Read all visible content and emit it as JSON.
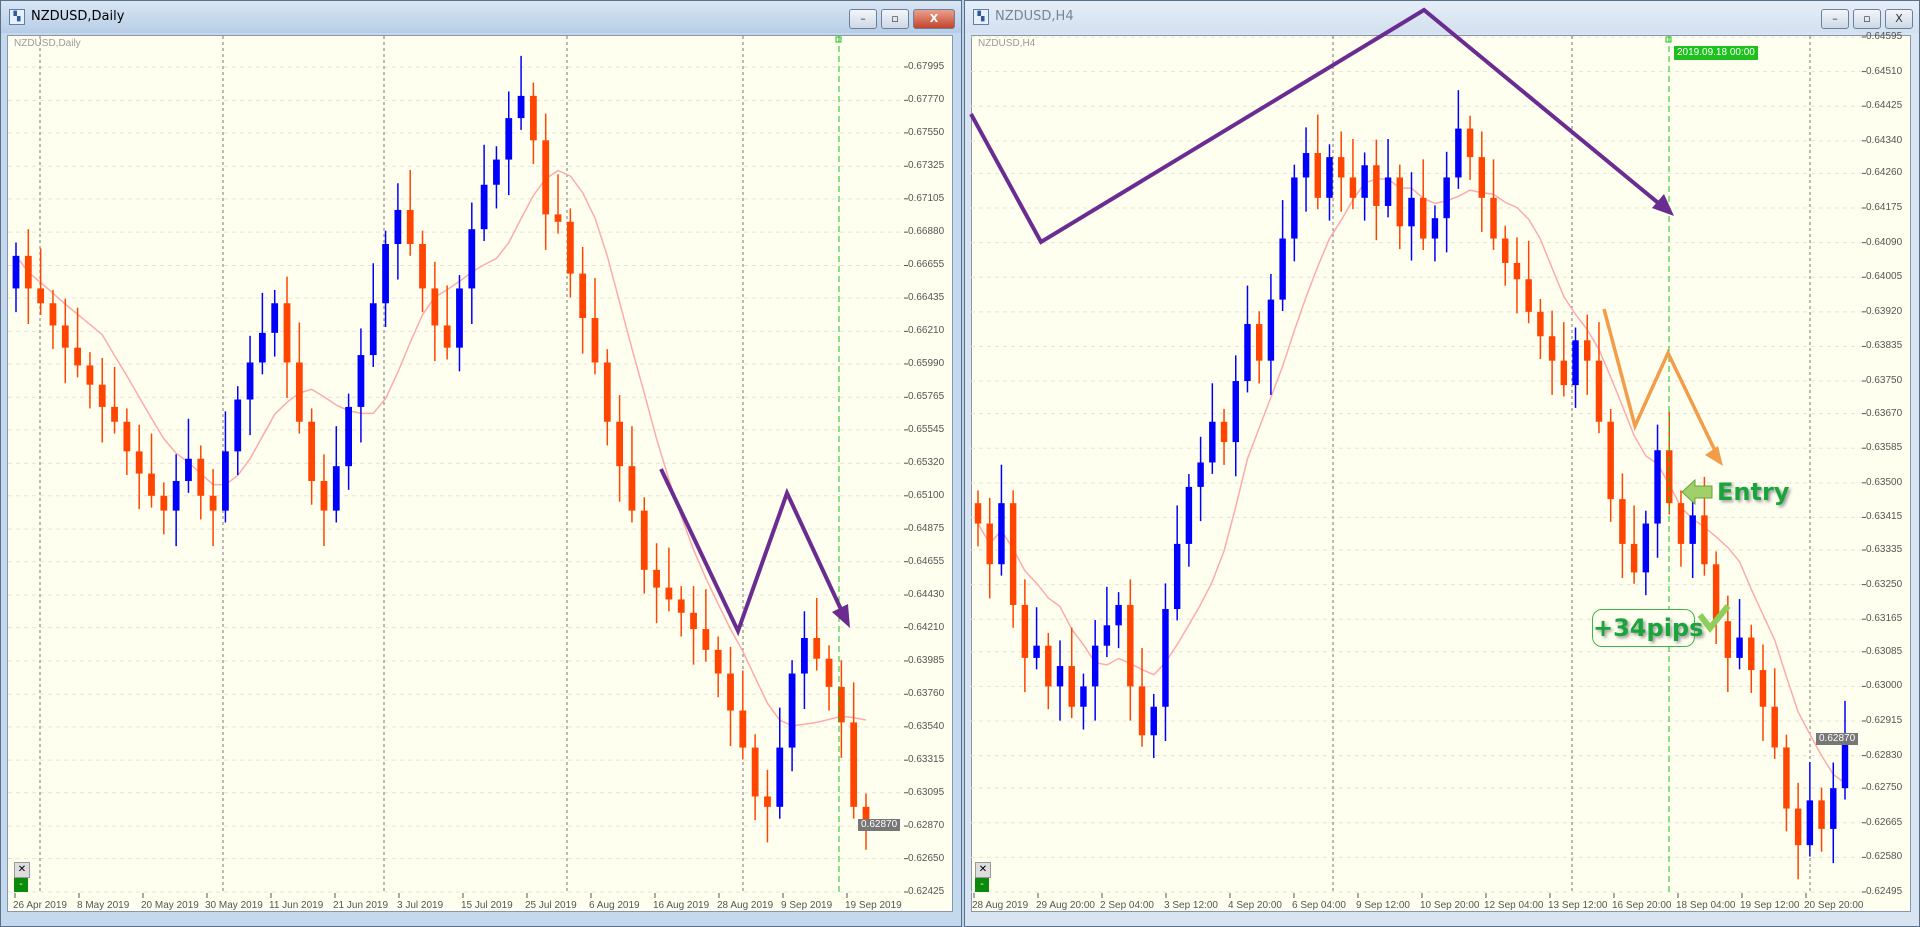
{
  "colors": {
    "bull": "#0000ff",
    "bear": "#ff4500",
    "ma": "#ffaaaa",
    "background": "#fffff0",
    "drawing_purple": "#6a2c91",
    "drawing_orange": "#f39c4a",
    "annotation_green": "#1aa53a"
  },
  "left_window": {
    "title": "NZDUSD,Daily",
    "symbol_label": "NZDUSD,Daily",
    "buttons": {
      "minimize": "–",
      "restore": "▫",
      "close": "X"
    },
    "current_price": "0.62870",
    "controls": {
      "close": "✕",
      "minimize": "-"
    }
  },
  "right_window": {
    "title": "NZDUSD,H4",
    "symbol_label": "NZDUSD,H4",
    "buttons": {
      "minimize": "–",
      "restore": "▫",
      "close": "X"
    },
    "current_price": "0.62870",
    "crosshair_date": "2019.09.18 00:00",
    "controls": {
      "close": "✕",
      "minimize": "-"
    },
    "annotations": {
      "entry": "Entry",
      "profit": "+34pips"
    }
  },
  "chart_data": [
    {
      "type": "candlestick",
      "title": "NZDUSD,Daily",
      "ylim": [
        0.62425,
        0.681
      ],
      "y_ticks": [
        "0.67995",
        "0.67770",
        "0.67550",
        "0.67325",
        "0.67105",
        "0.66880",
        "0.66655",
        "0.66435",
        "0.66210",
        "0.65990",
        "0.65765",
        "0.65545",
        "0.65320",
        "0.65100",
        "0.64875",
        "0.64655",
        "0.64430",
        "0.64210",
        "0.63985",
        "0.63760",
        "0.63540",
        "0.63315",
        "0.63095",
        "0.62870",
        "0.62650",
        "0.62425"
      ],
      "x_ticks": [
        "26 Apr 2019",
        "8 May 2019",
        "20 May 2019",
        "30 May 2019",
        "11 Jun 2019",
        "21 Jun 2019",
        "3 Jul 2019",
        "15 Jul 2019",
        "25 Jul 2019",
        "6 Aug 2019",
        "16 Aug 2019",
        "28 Aug 2019",
        "9 Sep 2019",
        "19 Sep 2019"
      ],
      "first_open": 0.665,
      "close": [
        0.6672,
        0.665,
        0.664,
        0.6625,
        0.661,
        0.6598,
        0.6585,
        0.657,
        0.656,
        0.654,
        0.6525,
        0.651,
        0.65,
        0.652,
        0.6535,
        0.651,
        0.65,
        0.654,
        0.6575,
        0.66,
        0.662,
        0.664,
        0.66,
        0.656,
        0.652,
        0.65,
        0.653,
        0.657,
        0.6605,
        0.664,
        0.668,
        0.6703,
        0.668,
        0.665,
        0.6625,
        0.661,
        0.665,
        0.669,
        0.672,
        0.6737,
        0.6765,
        0.678,
        0.675,
        0.67,
        0.6695,
        0.666,
        0.663,
        0.66,
        0.656,
        0.653,
        0.65,
        0.646,
        0.6448,
        0.644,
        0.6431,
        0.642,
        0.6406,
        0.639,
        0.6365,
        0.634,
        0.6307,
        0.63,
        0.634,
        0.639,
        0.6414,
        0.64,
        0.6381,
        0.6357,
        0.63,
        0.6287
      ],
      "grid": true
    },
    {
      "type": "candlestick",
      "title": "NZDUSD,H4",
      "ylim": [
        0.62495,
        0.64595
      ],
      "y_ticks": [
        "0.64595",
        "0.64510",
        "0.64425",
        "0.64340",
        "0.64260",
        "0.64175",
        "0.64090",
        "0.64005",
        "0.63920",
        "0.63835",
        "0.63750",
        "0.63670",
        "0.63585",
        "0.63500",
        "0.63415",
        "0.63335",
        "0.63250",
        "0.63165",
        "0.63085",
        "0.63000",
        "0.62915",
        "0.62830",
        "0.62750",
        "0.62665",
        "0.62580",
        "0.62495"
      ],
      "x_ticks": [
        "28 Aug 2019",
        "29 Aug 20:00",
        "2 Sep 04:00",
        "3 Sep 12:00",
        "4 Sep 20:00",
        "6 Sep 04:00",
        "9 Sep 12:00",
        "10 Sep 20:00",
        "12 Sep 04:00",
        "13 Sep 12:00",
        "16 Sep 20:00",
        "18 Sep 04:00",
        "19 Sep 12:00",
        "20 Sep 20:00"
      ],
      "first_open": 0.6345,
      "close": [
        0.634,
        0.633,
        0.6345,
        0.632,
        0.6307,
        0.631,
        0.63,
        0.6305,
        0.6295,
        0.63,
        0.631,
        0.6315,
        0.632,
        0.63,
        0.6288,
        0.6295,
        0.6319,
        0.6335,
        0.6349,
        0.6355,
        0.6365,
        0.636,
        0.6375,
        0.6389,
        0.638,
        0.6395,
        0.641,
        0.6425,
        0.6431,
        0.642,
        0.643,
        0.6425,
        0.642,
        0.6428,
        0.6418,
        0.6425,
        0.6413,
        0.642,
        0.641,
        0.6415,
        0.6425,
        0.6437,
        0.643,
        0.642,
        0.641,
        0.6404,
        0.64,
        0.6392,
        0.6386,
        0.638,
        0.6374,
        0.6385,
        0.638,
        0.6365,
        0.6346,
        0.6335,
        0.6328,
        0.634,
        0.6358,
        0.6345,
        0.6335,
        0.6342,
        0.633,
        0.6316,
        0.6307,
        0.6312,
        0.6304,
        0.6295,
        0.6285,
        0.627,
        0.6261,
        0.6272,
        0.6265,
        0.6275,
        0.6287
      ],
      "grid": true
    }
  ]
}
